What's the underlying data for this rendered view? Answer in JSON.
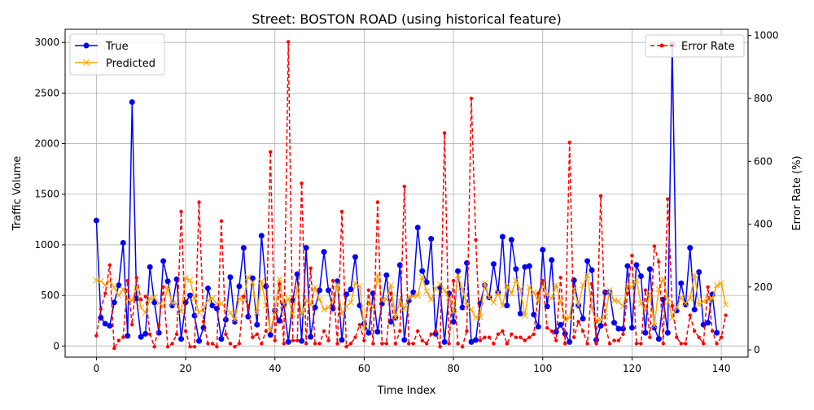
{
  "chart_data": {
    "type": "line",
    "title": "Street: BOSTON ROAD (using historical feature)",
    "xlabel": "Time Index",
    "ylabel": "Traffic Volume",
    "y2label": "Error Rate (%)",
    "xlim": [
      -7,
      146
    ],
    "ylim": [
      -110,
      3130
    ],
    "y2lim": [
      -23,
      1020
    ],
    "xticks": [
      0,
      20,
      40,
      60,
      80,
      100,
      120,
      140
    ],
    "yticks": [
      0,
      500,
      1000,
      1500,
      2000,
      2500,
      3000
    ],
    "y2ticks": [
      0,
      200,
      400,
      600,
      800,
      1000
    ],
    "grid": true,
    "legend_left_position": "upper left",
    "legend_right_position": "upper right",
    "series": [
      {
        "name": "True",
        "axis": "left",
        "color": "#0000ff",
        "marker": "circle",
        "values": [
          1240,
          280,
          220,
          200,
          430,
          600,
          1020,
          100,
          2410,
          470,
          90,
          120,
          780,
          430,
          130,
          840,
          640,
          400,
          660,
          70,
          430,
          500,
          300,
          50,
          180,
          570,
          400,
          370,
          70,
          260,
          680,
          240,
          590,
          970,
          290,
          670,
          210,
          1090,
          590,
          110,
          350,
          250,
          410,
          40,
          450,
          710,
          50,
          970,
          90,
          380,
          550,
          930,
          550,
          370,
          640,
          60,
          510,
          560,
          880,
          400,
          220,
          130,
          520,
          140,
          420,
          700,
          240,
          280,
          800,
          60,
          450,
          530,
          1170,
          740,
          630,
          1060,
          120,
          580,
          40,
          520,
          240,
          740,
          380,
          820,
          40,
          60,
          420,
          600,
          480,
          810,
          530,
          1080,
          400,
          1050,
          760,
          320,
          780,
          790,
          310,
          190,
          950,
          390,
          850,
          140,
          210,
          120,
          40,
          650,
          400,
          270,
          840,
          750,
          60,
          200,
          530,
          530,
          230,
          170,
          170,
          790,
          180,
          800,
          690,
          130,
          760,
          180,
          70,
          460,
          130,
          2980,
          350,
          620,
          410,
          970,
          360,
          730,
          210,
          230,
          510,
          130
        ]
      },
      {
        "name": "Predicted",
        "axis": "left",
        "color": "#ffa500",
        "marker": "x",
        "values": [
          650,
          640,
          600,
          640,
          580,
          500,
          560,
          460,
          450,
          580,
          380,
          330,
          470,
          480,
          420,
          390,
          580,
          420,
          420,
          340,
          670,
          650,
          470,
          330,
          370,
          450,
          470,
          420,
          420,
          370,
          330,
          260,
          470,
          470,
          680,
          630,
          330,
          640,
          400,
          150,
          340,
          660,
          410,
          470,
          310,
          580,
          310,
          450,
          410,
          580,
          460,
          360,
          380,
          450,
          610,
          320,
          390,
          430,
          620,
          590,
          180,
          440,
          380,
          700,
          450,
          460,
          600,
          280,
          450,
          370,
          480,
          490,
          500,
          680,
          540,
          460,
          570,
          610,
          550,
          470,
          340,
          700,
          560,
          400,
          360,
          280,
          290,
          620,
          480,
          430,
          530,
          400,
          600,
          520,
          650,
          560,
          300,
          580,
          530,
          440,
          620,
          510,
          470,
          600,
          440,
          260,
          280,
          560,
          400,
          600,
          700,
          370,
          250,
          260,
          290,
          550,
          450,
          440,
          390,
          600,
          580,
          650,
          420,
          350,
          520,
          200,
          560,
          660,
          470,
          280,
          380,
          480,
          420,
          470,
          700,
          410,
          440,
          460,
          470,
          600,
          620,
          410
        ]
      },
      {
        "name": "Error Rate",
        "axis": "right",
        "color": "#ff0000",
        "marker": "circle",
        "linestyle": "dashed",
        "values": [
          45,
          130,
          180,
          270,
          5,
          30,
          40,
          220,
          80,
          230,
          160,
          170,
          50,
          10,
          80,
          200,
          10,
          20,
          50,
          440,
          60,
          10,
          10,
          470,
          90,
          20,
          20,
          10,
          410,
          50,
          20,
          10,
          20,
          170,
          140,
          40,
          50,
          20,
          60,
          630,
          30,
          210,
          20,
          980,
          30,
          30,
          530,
          20,
          260,
          20,
          20,
          60,
          30,
          220,
          20,
          440,
          10,
          20,
          40,
          80,
          30,
          190,
          20,
          470,
          20,
          20,
          180,
          20,
          60,
          520,
          20,
          20,
          60,
          30,
          20,
          50,
          60,
          10,
          690,
          20,
          220,
          20,
          10,
          60,
          800,
          350,
          30,
          40,
          40,
          20,
          50,
          60,
          20,
          50,
          40,
          40,
          30,
          40,
          50,
          180,
          220,
          70,
          60,
          30,
          230,
          20,
          660,
          40,
          90,
          60,
          20,
          210,
          20,
          490,
          80,
          20,
          30,
          30,
          50,
          180,
          300,
          20,
          20,
          190,
          40,
          330,
          280,
          20,
          480,
          140,
          40,
          20,
          20,
          110,
          60,
          40,
          20,
          200,
          60,
          20,
          40,
          110
        ]
      }
    ]
  }
}
